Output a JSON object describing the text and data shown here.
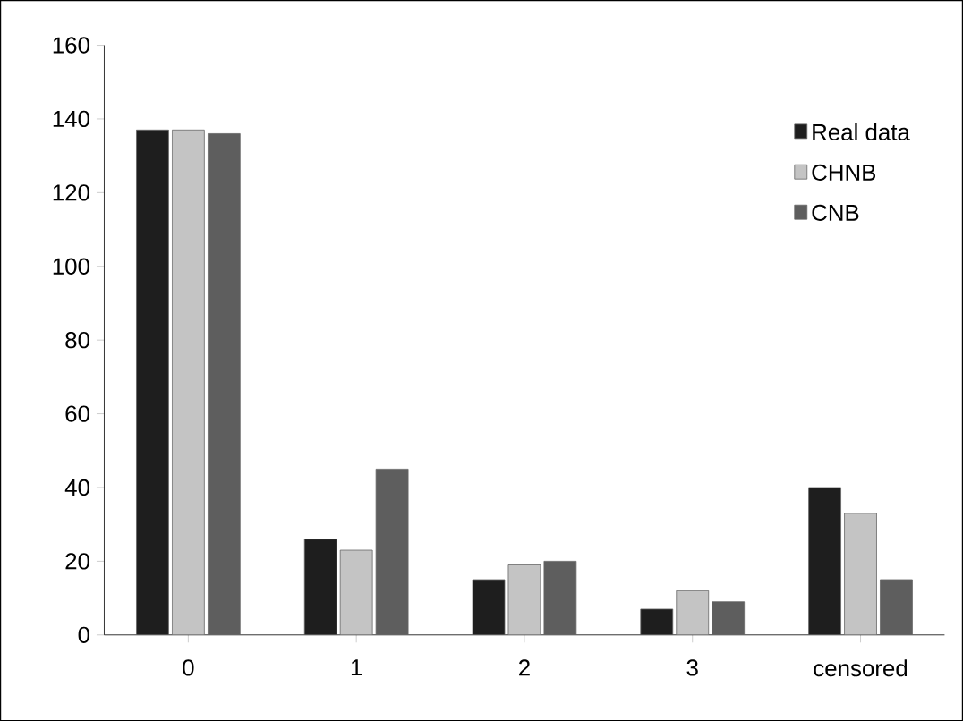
{
  "chart_data": {
    "type": "bar",
    "categories": [
      "0",
      "1",
      "2",
      "3",
      "censored"
    ],
    "series": [
      {
        "name": "Real data",
        "color": "#1e1e1e",
        "values": [
          137,
          26,
          15,
          7,
          40
        ]
      },
      {
        "name": "CHNB",
        "color": "#c4c4c4",
        "values": [
          137,
          23,
          19,
          12,
          33
        ]
      },
      {
        "name": "CNB",
        "color": "#5e5e5e",
        "values": [
          136,
          45,
          20,
          9,
          15
        ]
      }
    ],
    "ylim": [
      0,
      160
    ],
    "yticks": [
      0,
      20,
      40,
      60,
      80,
      100,
      120,
      140,
      160
    ],
    "grid": false,
    "legend": "top right"
  }
}
